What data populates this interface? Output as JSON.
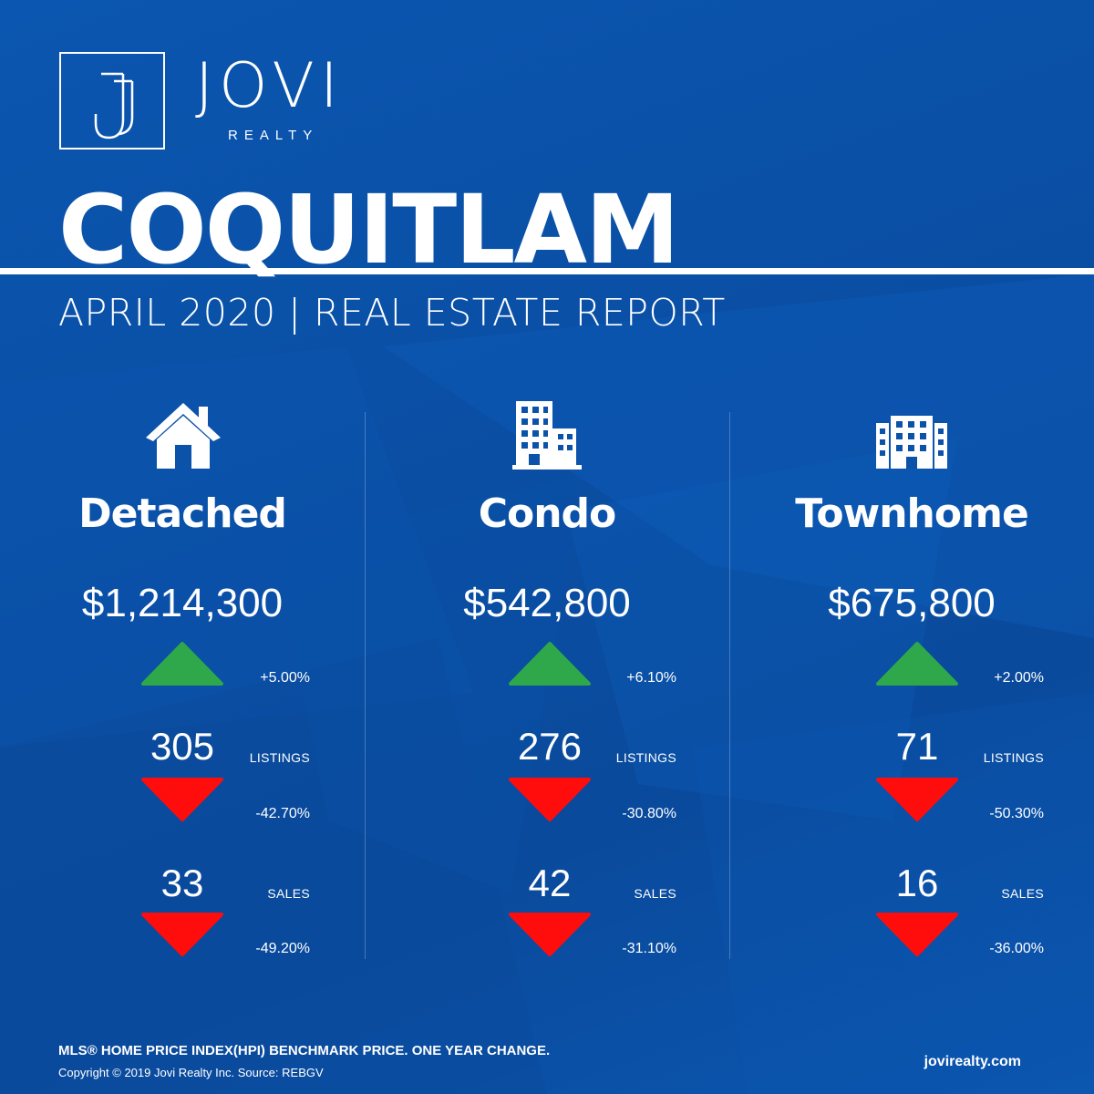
{
  "brand": {
    "name": "JOVI",
    "sub": "REALTY",
    "mark_letter": "J"
  },
  "title": {
    "city": "COQUITLAM",
    "report": "APRIL 2020 | REAL ESTATE REPORT"
  },
  "colors": {
    "background": "#0a4fa6",
    "up": "#2ea84a",
    "down": "#ff0d0d",
    "text": "#ffffff"
  },
  "columns": [
    {
      "icon": "house-icon",
      "type": "Detached",
      "price": "$1,214,300",
      "price_change": "+5.00%",
      "price_direction": "up",
      "listings": "305",
      "listings_label": "LISTINGS",
      "listings_change": "-42.70%",
      "listings_direction": "down",
      "sales": "33",
      "sales_label": "SALES",
      "sales_change": "-49.20%",
      "sales_direction": "down"
    },
    {
      "icon": "condo-building-icon",
      "type": "Condo",
      "price": "$542,800",
      "price_change": "+6.10%",
      "price_direction": "up",
      "listings": "276",
      "listings_label": "LISTINGS",
      "listings_change": "-30.80%",
      "listings_direction": "down",
      "sales": "42",
      "sales_label": "SALES",
      "sales_change": "-31.10%",
      "sales_direction": "down"
    },
    {
      "icon": "townhome-building-icon",
      "type": "Townhome",
      "price": "$675,800",
      "price_change": "+2.00%",
      "price_direction": "up",
      "listings": "71",
      "listings_label": "LISTINGS",
      "listings_change": "-50.30%",
      "listings_direction": "down",
      "sales": "16",
      "sales_label": "SALES",
      "sales_change": "-36.00%",
      "sales_direction": "down"
    }
  ],
  "footer": {
    "note": "MLS® HOME PRICE INDEX(HPI) BENCHMARK PRICE. ONE YEAR CHANGE.",
    "copyright": "Copyright © 2019 Jovi Realty Inc. Source: REBGV",
    "website": "jovirealty.com"
  }
}
